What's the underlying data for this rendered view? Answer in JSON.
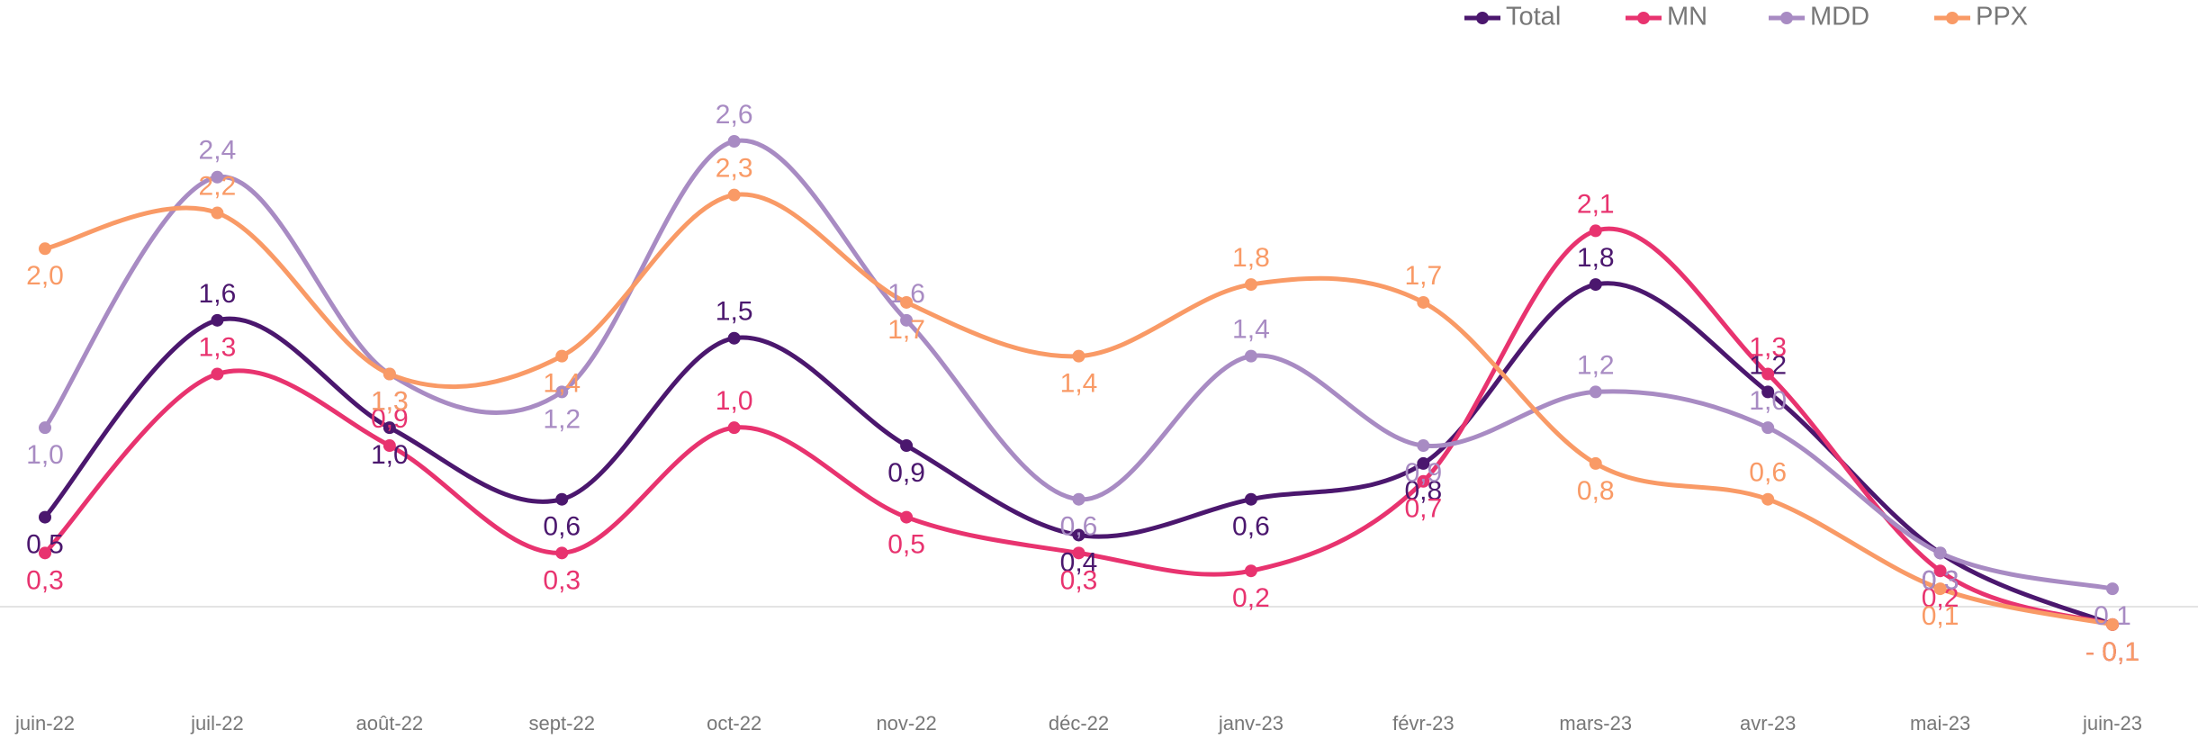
{
  "chart_data": {
    "type": "line",
    "categories": [
      "juin-22",
      "juil-22",
      "août-22",
      "sept-22",
      "oct-22",
      "nov-22",
      "déc-22",
      "janv-23",
      "févr-23",
      "mars-23",
      "avr-23",
      "mai-23",
      "juin-23"
    ],
    "series": [
      {
        "name": "Total",
        "color": "#4b176e",
        "values": [
          0.5,
          1.6,
          1.0,
          0.6,
          1.5,
          0.9,
          0.4,
          0.6,
          0.8,
          1.8,
          1.2,
          0.3,
          -0.1
        ],
        "value_labels": [
          "0,5",
          "1,6",
          "1,0",
          "0,6",
          "1,5",
          "0,9",
          "0,4",
          "0,6",
          "0,8",
          "1,8",
          "1,2",
          "0,3",
          "- 0,1"
        ]
      },
      {
        "name": "MN",
        "color": "#e8336f",
        "values": [
          0.3,
          1.3,
          0.9,
          0.3,
          1.0,
          0.5,
          0.3,
          0.2,
          0.7,
          2.1,
          1.3,
          0.2,
          -0.1
        ],
        "value_labels": [
          "0,3",
          "1,3",
          "0,9",
          "0,3",
          "1,0",
          "0,5",
          "0,3",
          "0,2",
          "0,7",
          "2,1",
          "1,3",
          "0,2",
          "- 0,1"
        ]
      },
      {
        "name": "MDD",
        "color": "#a88bc3",
        "values": [
          1.0,
          2.4,
          1.3,
          1.2,
          2.6,
          1.6,
          0.6,
          1.4,
          0.9,
          1.2,
          1.0,
          0.3,
          0.1
        ],
        "value_labels": [
          "1,0",
          "2,4",
          "1,3",
          "1,2",
          "2,6",
          "1,6",
          "0,6",
          "1,4",
          "0,9",
          "1,2",
          "1,0",
          "0,3",
          "0,1"
        ]
      },
      {
        "name": "PPX",
        "color": "#f99a66",
        "values": [
          2.0,
          2.2,
          1.3,
          1.4,
          2.3,
          1.7,
          1.4,
          1.8,
          1.7,
          0.8,
          0.6,
          0.1,
          -0.1
        ],
        "value_labels": [
          "2,0",
          "2,2",
          "1,3",
          "1,4",
          "2,3",
          "1,7",
          "1,4",
          "1,8",
          "1,7",
          "0,8",
          "0,6",
          "0,1",
          "- 0,1"
        ]
      }
    ],
    "legend": "top-right"
  }
}
